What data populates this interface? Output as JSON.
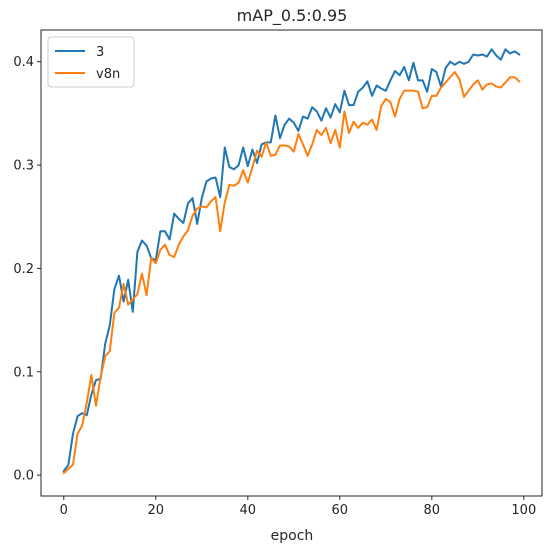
{
  "chart_data": {
    "type": "line",
    "title": "mAP_0.5:0.95",
    "xlabel": "epoch",
    "ylabel": "",
    "xlim": [
      -4.95,
      103.95
    ],
    "ylim": [
      -0.0202,
      0.4307
    ],
    "xticks": [
      0,
      20,
      40,
      60,
      80,
      100
    ],
    "xtick_labels": [
      "0",
      "20",
      "40",
      "60",
      "80",
      "100"
    ],
    "yticks": [
      0.0,
      0.1,
      0.2,
      0.3,
      0.4
    ],
    "ytick_labels": [
      "0.0",
      "0.1",
      "0.2",
      "0.3",
      "0.4"
    ],
    "grid": false,
    "legend_position": "upper left",
    "series": [
      {
        "name": "3",
        "color": "#1f77b4",
        "x": [
          0,
          1,
          2,
          3,
          4,
          5,
          6,
          7,
          8,
          9,
          10,
          11,
          12,
          13,
          14,
          15,
          16,
          17,
          18,
          19,
          20,
          21,
          22,
          23,
          24,
          25,
          26,
          27,
          28,
          29,
          30,
          31,
          32,
          33,
          34,
          35,
          36,
          37,
          38,
          39,
          40,
          41,
          42,
          43,
          44,
          45,
          46,
          47,
          48,
          49,
          50,
          51,
          52,
          53,
          54,
          55,
          56,
          57,
          58,
          59,
          60,
          61,
          62,
          63,
          64,
          65,
          66,
          67,
          68,
          69,
          70,
          71,
          72,
          73,
          74,
          75,
          76,
          77,
          78,
          79,
          80,
          81,
          82,
          83,
          84,
          85,
          86,
          87,
          88,
          89,
          90,
          91,
          92,
          93,
          94,
          95,
          96,
          97,
          98,
          99
        ],
        "y": [
          0.004,
          0.01,
          0.04,
          0.057,
          0.06,
          0.058,
          0.078,
          0.092,
          0.093,
          0.127,
          0.145,
          0.18,
          0.193,
          0.168,
          0.189,
          0.158,
          0.216,
          0.227,
          0.222,
          0.21,
          0.208,
          0.236,
          0.236,
          0.228,
          0.253,
          0.248,
          0.244,
          0.263,
          0.268,
          0.243,
          0.268,
          0.284,
          0.287,
          0.288,
          0.269,
          0.317,
          0.298,
          0.296,
          0.3,
          0.317,
          0.299,
          0.315,
          0.302,
          0.32,
          0.322,
          0.322,
          0.348,
          0.326,
          0.339,
          0.345,
          0.341,
          0.333,
          0.347,
          0.345,
          0.356,
          0.352,
          0.343,
          0.355,
          0.346,
          0.359,
          0.351,
          0.372,
          0.358,
          0.358,
          0.371,
          0.375,
          0.381,
          0.367,
          0.377,
          0.374,
          0.372,
          0.382,
          0.391,
          0.387,
          0.395,
          0.382,
          0.399,
          0.382,
          0.382,
          0.371,
          0.393,
          0.39,
          0.376,
          0.394,
          0.4,
          0.397,
          0.4,
          0.398,
          0.4,
          0.407,
          0.406,
          0.407,
          0.405,
          0.412,
          0.406,
          0.402,
          0.412,
          0.408,
          0.41,
          0.407
        ]
      },
      {
        "name": "v8n",
        "color": "#ff7f0e",
        "x": [
          0,
          1,
          2,
          3,
          4,
          5,
          6,
          7,
          8,
          9,
          10,
          11,
          12,
          13,
          14,
          15,
          16,
          17,
          18,
          19,
          20,
          21,
          22,
          23,
          24,
          25,
          26,
          27,
          28,
          29,
          30,
          31,
          32,
          33,
          34,
          35,
          36,
          37,
          38,
          39,
          40,
          41,
          42,
          43,
          44,
          45,
          46,
          47,
          48,
          49,
          50,
          51,
          52,
          53,
          54,
          55,
          56,
          57,
          58,
          59,
          60,
          61,
          62,
          63,
          64,
          65,
          66,
          67,
          68,
          69,
          70,
          71,
          72,
          73,
          74,
          75,
          76,
          77,
          78,
          79,
          80,
          81,
          82,
          83,
          84,
          85,
          86,
          87,
          88,
          89,
          90,
          91,
          92,
          93,
          94,
          95,
          96,
          97,
          98,
          99
        ],
        "y": [
          0.002,
          0.006,
          0.01,
          0.04,
          0.048,
          0.07,
          0.097,
          0.067,
          0.095,
          0.115,
          0.12,
          0.157,
          0.162,
          0.185,
          0.165,
          0.17,
          0.175,
          0.195,
          0.174,
          0.21,
          0.205,
          0.218,
          0.223,
          0.213,
          0.211,
          0.223,
          0.231,
          0.237,
          0.251,
          0.258,
          0.26,
          0.259,
          0.265,
          0.269,
          0.236,
          0.264,
          0.281,
          0.28,
          0.283,
          0.295,
          0.283,
          0.298,
          0.314,
          0.308,
          0.322,
          0.309,
          0.31,
          0.319,
          0.319,
          0.318,
          0.313,
          0.33,
          0.32,
          0.309,
          0.32,
          0.334,
          0.329,
          0.336,
          0.321,
          0.334,
          0.317,
          0.352,
          0.331,
          0.342,
          0.336,
          0.341,
          0.339,
          0.344,
          0.334,
          0.357,
          0.364,
          0.361,
          0.347,
          0.364,
          0.372,
          0.372,
          0.372,
          0.371,
          0.355,
          0.356,
          0.367,
          0.367,
          0.375,
          0.38,
          0.385,
          0.39,
          0.383,
          0.366,
          0.372,
          0.378,
          0.382,
          0.373,
          0.378,
          0.379,
          0.376,
          0.375,
          0.38,
          0.385,
          0.385,
          0.381
        ]
      }
    ]
  }
}
